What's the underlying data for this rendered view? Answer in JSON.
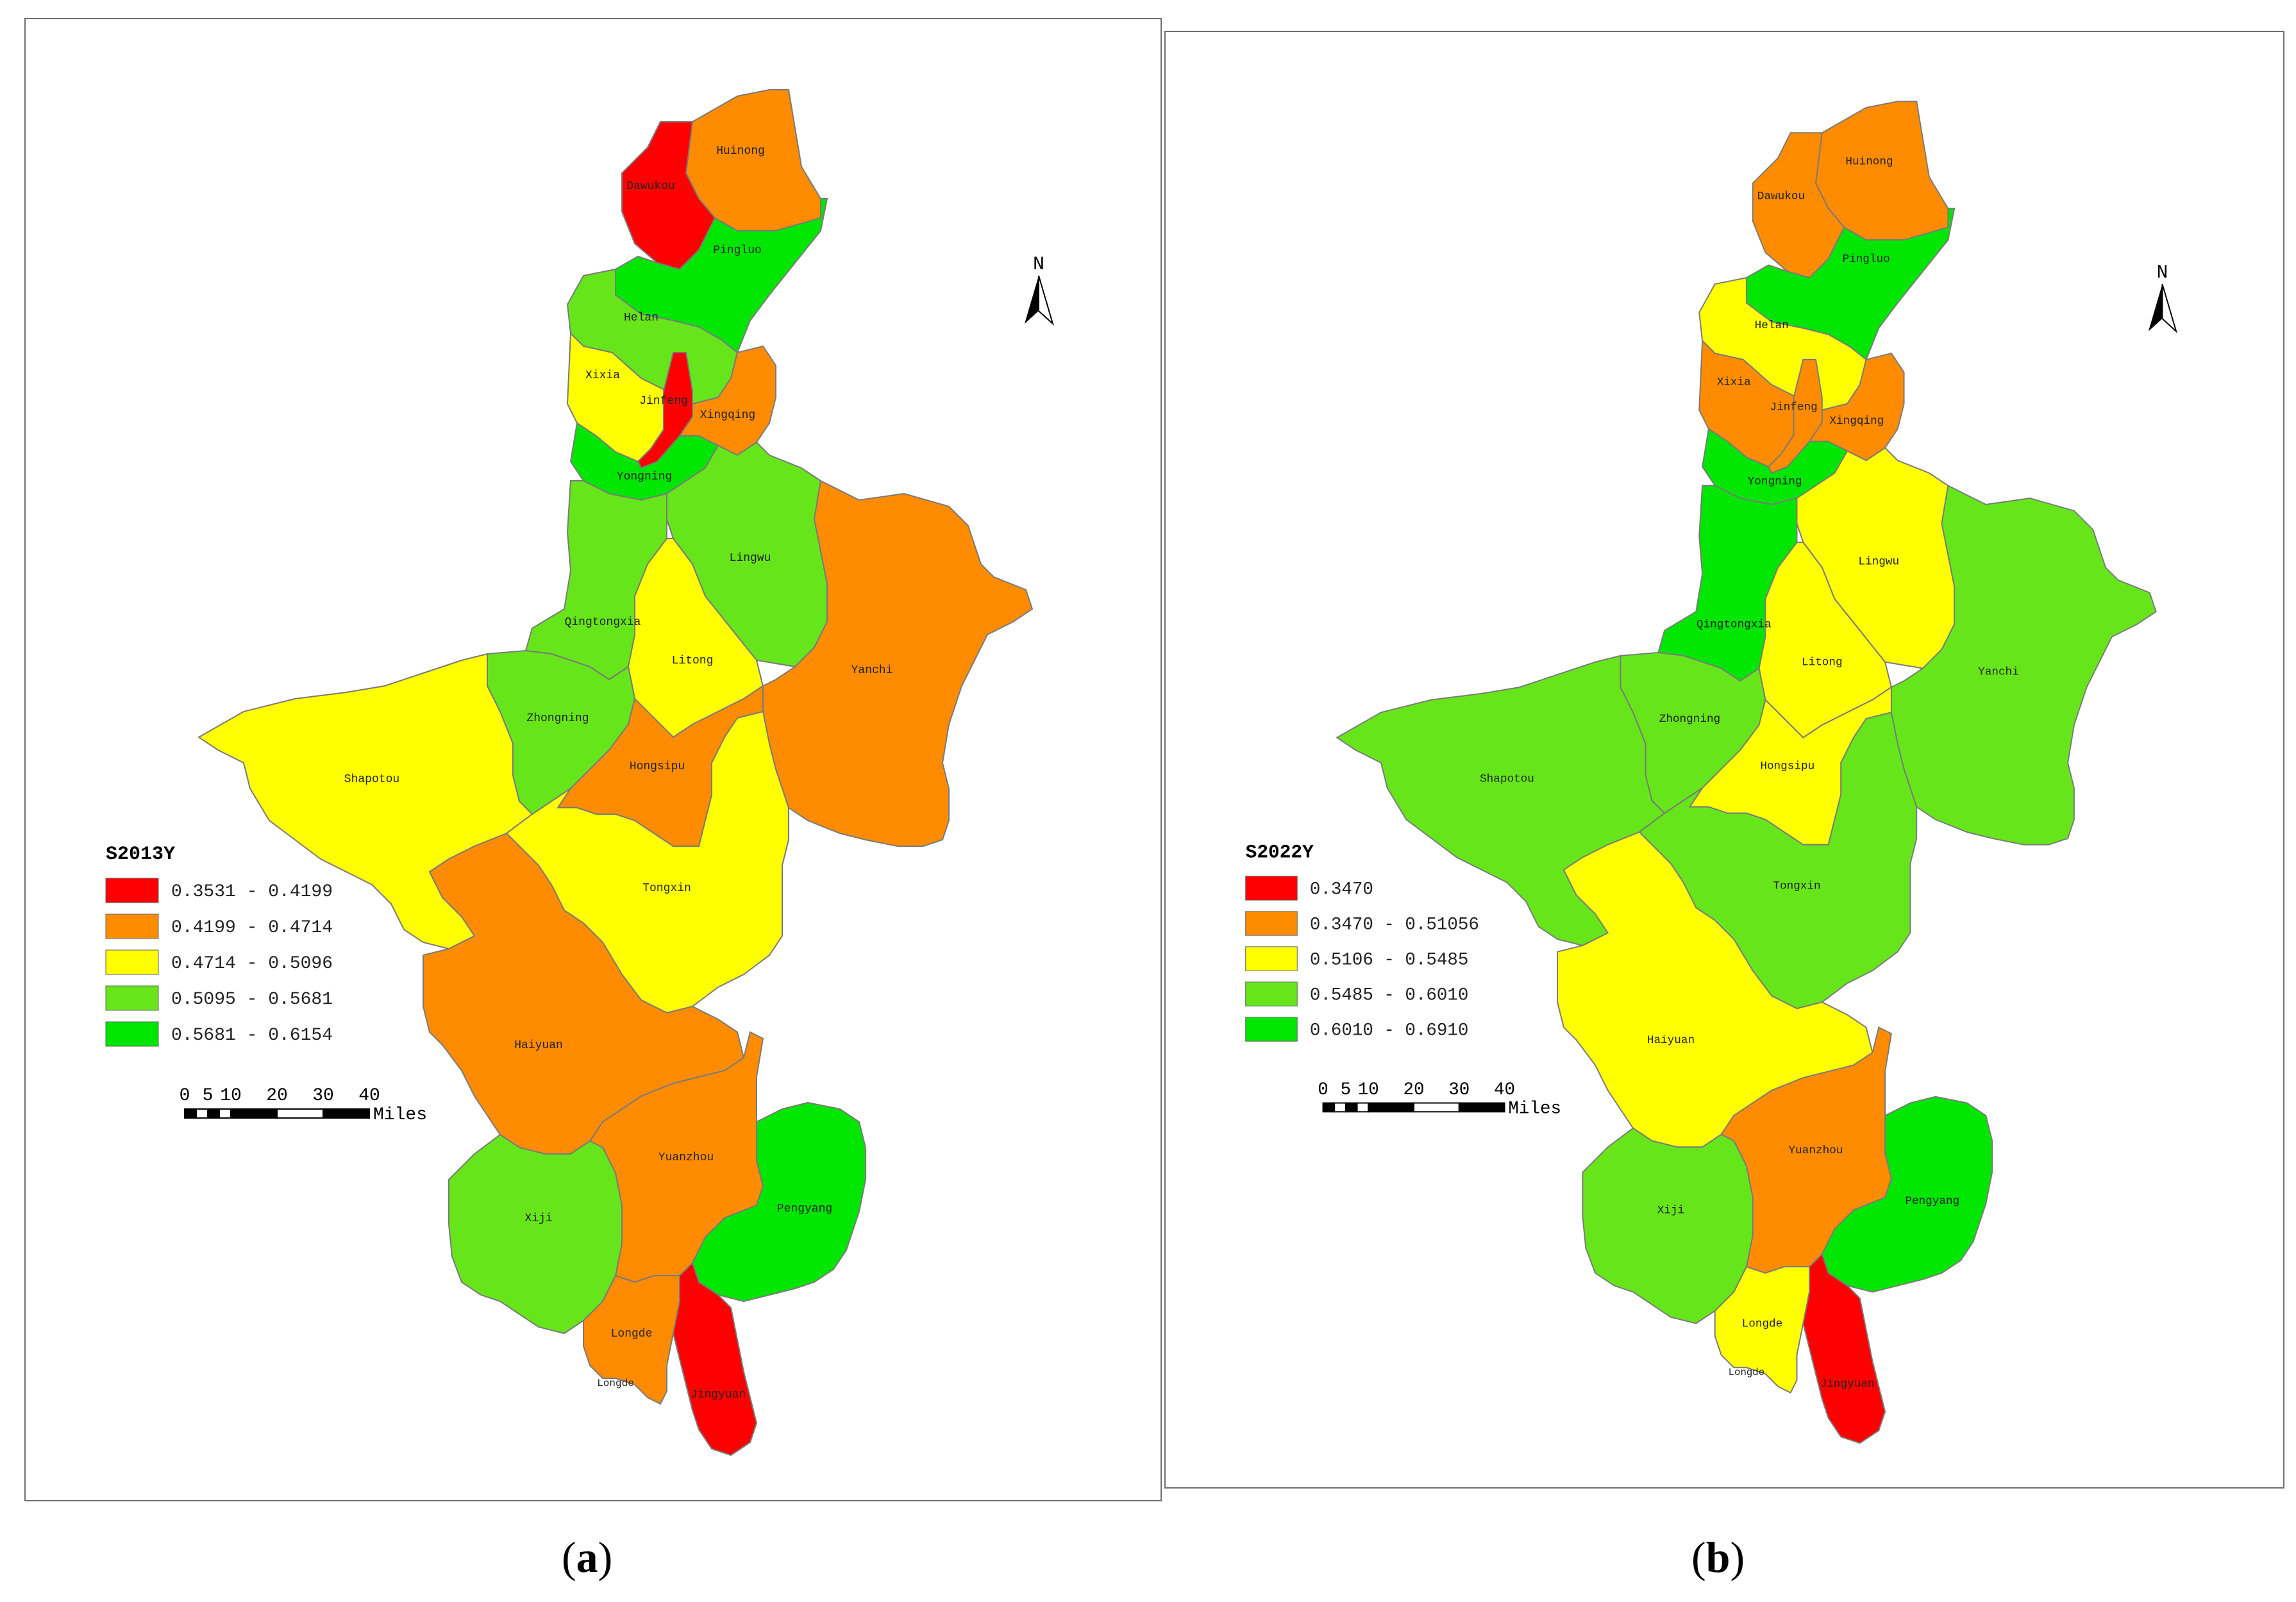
{
  "panels": [
    {
      "id": "a",
      "caption": "a",
      "legend_title": "S2013Y",
      "legend": [
        {
          "label": "0.3531 - 0.4199",
          "color": "#ff0000"
        },
        {
          "label": "0.4199 - 0.4714",
          "color": "#ff8c00"
        },
        {
          "label": "0.4714 - 0.5096",
          "color": "#ffff00"
        },
        {
          "label": "0.5095 - 0.5681",
          "color": "#66e61a"
        },
        {
          "label": "0.5681 - 0.6154",
          "color": "#00e600"
        }
      ],
      "north_label": "N",
      "scale": {
        "ticks": [
          "0",
          "5",
          "10",
          "20",
          "30",
          "40"
        ],
        "unit": "Miles"
      },
      "regions": [
        {
          "name": "Huinong",
          "class": 1
        },
        {
          "name": "Dawukou",
          "class": 0
        },
        {
          "name": "Pingluo",
          "class": 4
        },
        {
          "name": "Helan",
          "class": 3
        },
        {
          "name": "Xixia",
          "class": 2
        },
        {
          "name": "Jinfeng",
          "class": 0
        },
        {
          "name": "Xingqing",
          "class": 1
        },
        {
          "name": "Yongning",
          "class": 4
        },
        {
          "name": "Lingwu",
          "class": 3
        },
        {
          "name": "Qingtongxia",
          "class": 3
        },
        {
          "name": "Litong",
          "class": 2
        },
        {
          "name": "Yanchi",
          "class": 1
        },
        {
          "name": "Zhongning",
          "class": 3
        },
        {
          "name": "Hongsipu",
          "class": 1
        },
        {
          "name": "Shapotou",
          "class": 2
        },
        {
          "name": "Tongxin",
          "class": 2
        },
        {
          "name": "Haiyuan",
          "class": 1
        },
        {
          "name": "Yuanzhou",
          "class": 1
        },
        {
          "name": "Pengyang",
          "class": 4
        },
        {
          "name": "Xiji",
          "class": 3
        },
        {
          "name": "Longde",
          "class": 1
        },
        {
          "name": "Jingyuan",
          "class": 0
        }
      ]
    },
    {
      "id": "b",
      "caption": "b",
      "legend_title": "S2022Y",
      "legend": [
        {
          "label": "0.3470",
          "color": "#ff0000"
        },
        {
          "label": "0.3470 - 0.51056",
          "color": "#ff8c00"
        },
        {
          "label": "0.5106 - 0.5485",
          "color": "#ffff00"
        },
        {
          "label": "0.5485 - 0.6010",
          "color": "#66e61a"
        },
        {
          "label": "0.6010 - 0.6910",
          "color": "#00e600"
        }
      ],
      "north_label": "N",
      "scale": {
        "ticks": [
          "0",
          "5",
          "10",
          "20",
          "30",
          "40"
        ],
        "unit": "Miles"
      },
      "regions": [
        {
          "name": "Huinong",
          "class": 1
        },
        {
          "name": "Dawukou",
          "class": 1
        },
        {
          "name": "Pingluo",
          "class": 4
        },
        {
          "name": "Helan",
          "class": 2
        },
        {
          "name": "Xixia",
          "class": 1
        },
        {
          "name": "Jinfeng",
          "class": 1
        },
        {
          "name": "Xingqing",
          "class": 1
        },
        {
          "name": "Yongning",
          "class": 4
        },
        {
          "name": "Lingwu",
          "class": 2
        },
        {
          "name": "Qingtongxia",
          "class": 4
        },
        {
          "name": "Litong",
          "class": 2
        },
        {
          "name": "Yanchi",
          "class": 3
        },
        {
          "name": "Zhongning",
          "class": 3
        },
        {
          "name": "Hongsipu",
          "class": 2
        },
        {
          "name": "Shapotou",
          "class": 3
        },
        {
          "name": "Tongxin",
          "class": 3
        },
        {
          "name": "Haiyuan",
          "class": 2
        },
        {
          "name": "Yuanzhou",
          "class": 1
        },
        {
          "name": "Pengyang",
          "class": 4
        },
        {
          "name": "Xiji",
          "class": 3
        },
        {
          "name": "Longde",
          "class": 2
        },
        {
          "name": "Jingyuan",
          "class": 0
        }
      ]
    }
  ]
}
